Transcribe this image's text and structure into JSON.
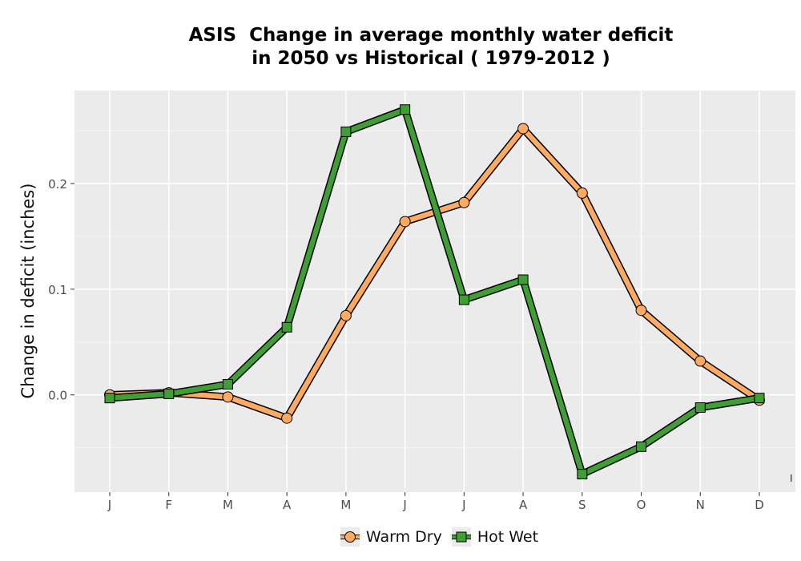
{
  "chart_data": {
    "type": "line",
    "title_lines": [
      "ASIS  Change in average monthly water deficit",
      "in 2050 vs Historical ( 1979-2012 )"
    ],
    "xlabel": "",
    "ylabel": "Change in deficit (inches)",
    "categories": [
      "J",
      "F",
      "M",
      "A",
      "M",
      "J",
      "J",
      "A",
      "S",
      "O",
      "N",
      "D"
    ],
    "yticks": [
      "0.0",
      "0.1",
      "0.2"
    ],
    "ylim": [
      -0.092,
      0.288
    ],
    "grid": true,
    "legend_position": "bottom",
    "series": [
      {
        "name": "Warm Dry",
        "color": "#fdaa63",
        "marker": "circle",
        "values": [
          0.0,
          0.002,
          -0.002,
          -0.022,
          0.075,
          0.164,
          0.182,
          0.252,
          0.191,
          0.08,
          0.032,
          -0.005
        ]
      },
      {
        "name": "Hot Wet",
        "color": "#3f9e34",
        "marker": "square",
        "values": [
          -0.003,
          0.001,
          0.01,
          0.064,
          0.249,
          0.27,
          0.09,
          0.109,
          -0.075,
          -0.049,
          -0.012,
          -0.003
        ]
      }
    ],
    "stray_mark": "I"
  }
}
